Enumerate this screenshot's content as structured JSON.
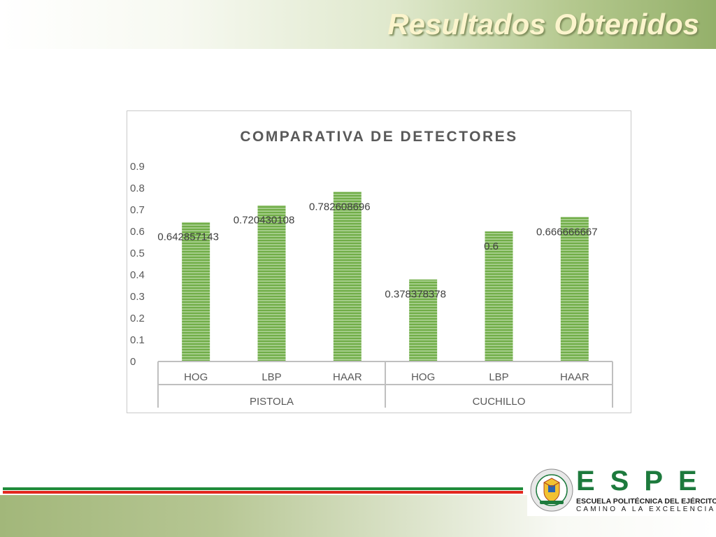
{
  "slide": {
    "title": "Resultados Obtenidos"
  },
  "logo": {
    "wordmark": "ESPE",
    "institution": "ESCUELA POLITÉCNICA DEL EJÉRCITO",
    "motto": "CAMINO A LA EXCELENCIA",
    "seal_text_top": "ESCUELA POLITÉCNICA DEL EJÉRCITO",
    "seal_text_bottom": "ECUADOR"
  },
  "colors": {
    "bar_fill": "#70ad47",
    "bar_stripe": "#c5e0b4",
    "title_text": "#fbf4cc",
    "band_green": "#94b06a",
    "rule_green": "#1f8a3a",
    "rule_red": "#e2271e",
    "wordmark_green": "#1d7a3d"
  },
  "chart_data": {
    "type": "bar",
    "title": "COMPARATIVA DE DETECTORES",
    "xlabel": "",
    "ylabel": "",
    "ylim": [
      0,
      0.9
    ],
    "yticks": [
      "0",
      "0.1",
      "0.2",
      "0.3",
      "0.4",
      "0.5",
      "0.6",
      "0.7",
      "0.8",
      "0.9"
    ],
    "grid": false,
    "legend": "none",
    "groups": [
      {
        "label": "PISTOLA",
        "categories": [
          "HOG",
          "LBP",
          "HAAR"
        ],
        "values": [
          0.642857143,
          0.720430108,
          0.782608696
        ],
        "data_labels": [
          "0.642857143",
          "0.720430108",
          "0.782608696"
        ]
      },
      {
        "label": "CUCHILLO",
        "categories": [
          "HOG",
          "LBP",
          "HAAR"
        ],
        "values": [
          0.378378378,
          0.6,
          0.666666667
        ],
        "data_labels": [
          "0.378378378",
          "0.6",
          "0.666666667"
        ]
      }
    ]
  }
}
